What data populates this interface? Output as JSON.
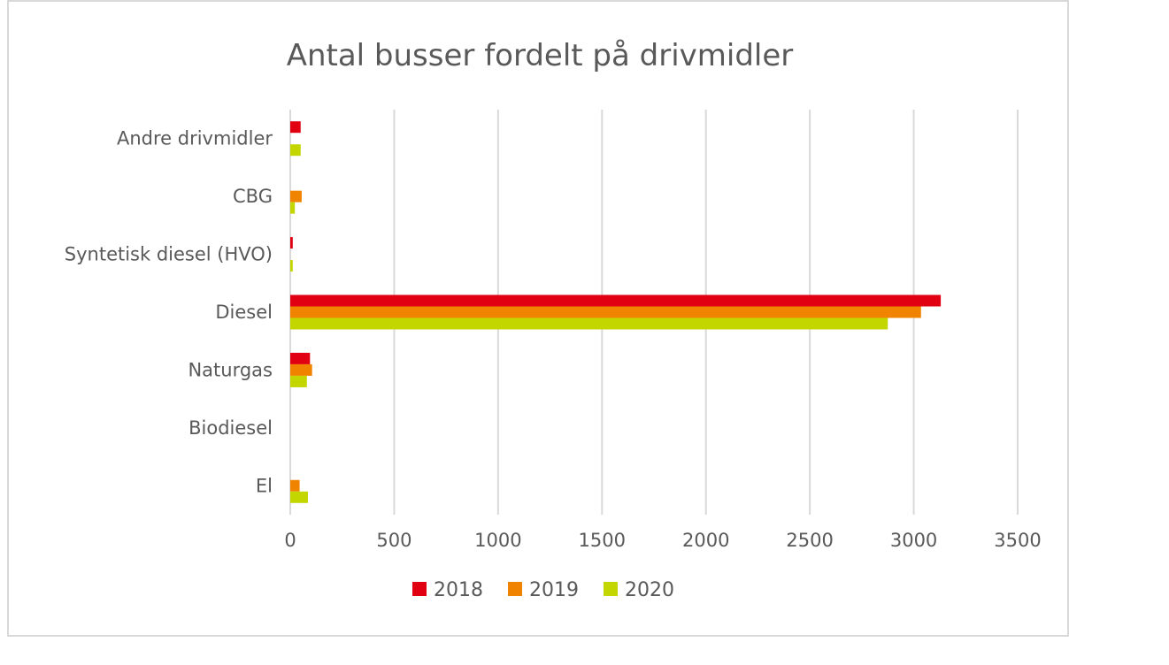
{
  "chart_data": {
    "type": "bar",
    "orientation": "horizontal",
    "title": "Antal busser fordelt på drivmidler",
    "categories": [
      "El",
      "Biodiesel",
      "Naturgas",
      "Diesel",
      "Syntetisk diesel (HVO)",
      "CBG",
      "Andre drivmidler"
    ],
    "series": [
      {
        "name": "2018",
        "color": "#e00011",
        "values": [
          0,
          0,
          95,
          3130,
          12,
          0,
          50
        ]
      },
      {
        "name": "2019",
        "color": "#f08400",
        "values": [
          45,
          0,
          105,
          3035,
          0,
          55,
          0
        ]
      },
      {
        "name": "2020",
        "color": "#c3d600",
        "values": [
          85,
          0,
          80,
          2875,
          12,
          22,
          50
        ]
      }
    ],
    "xlim": [
      0,
      3500
    ],
    "xticks": [
      "0",
      "500",
      "1000",
      "1500",
      "2000",
      "2500",
      "3000",
      "3500"
    ],
    "grid": true,
    "legend": "bottom"
  }
}
